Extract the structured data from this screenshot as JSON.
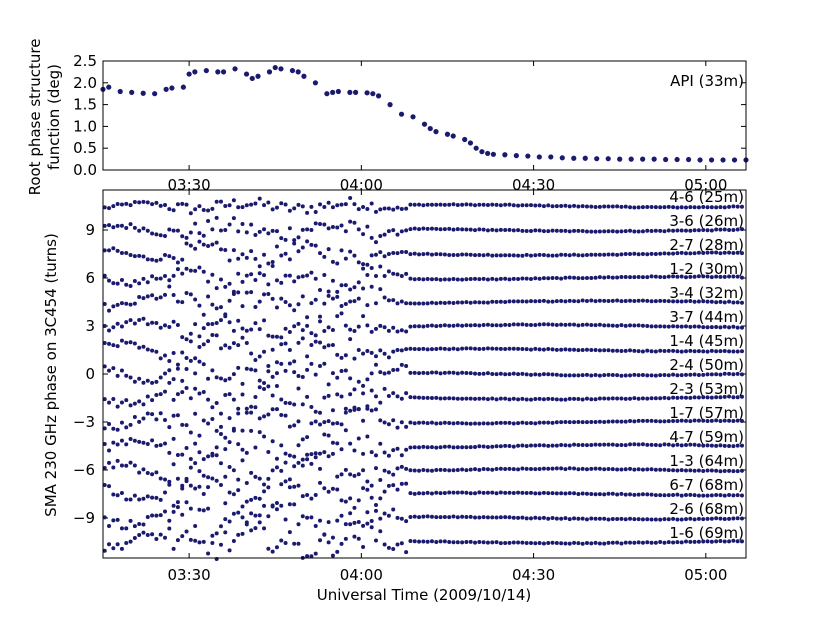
{
  "chart_data": [
    {
      "type": "scatter",
      "ylabel": "Root phase structure function (deg)",
      "ylabel_lines": [
        "Root phase structure",
        "function (deg)"
      ],
      "ylim": [
        0.0,
        2.5
      ],
      "xlim": [
        "03:15",
        "05:07"
      ],
      "yticks": [
        "0.0",
        "0.5",
        "1.0",
        "1.5",
        "2.0",
        "2.5"
      ],
      "xticks": [
        "03:30",
        "04:00",
        "04:30",
        "05:00"
      ],
      "annotation": "API (33m)",
      "marker_color": "#1a1a6e",
      "grid": false,
      "series": [
        {
          "x": [
            "03:15",
            "03:16",
            "03:18",
            "03:20",
            "03:22",
            "03:24",
            "03:26",
            "03:27",
            "03:29",
            "03:30",
            "03:31",
            "03:33",
            "03:35",
            "03:36",
            "03:38",
            "03:40",
            "03:41",
            "03:42",
            "03:44",
            "03:45",
            "03:46",
            "03:48",
            "03:49",
            "03:50",
            "03:52",
            "03:54",
            "03:55",
            "03:56",
            "03:58",
            "03:59",
            "04:01",
            "04:02",
            "04:03",
            "04:05",
            "04:07",
            "04:09",
            "04:11",
            "04:12",
            "04:13",
            "04:15",
            "04:16",
            "04:18",
            "04:19",
            "04:20",
            "04:21",
            "04:22",
            "04:23",
            "04:25",
            "04:27",
            "04:29",
            "04:31",
            "04:33",
            "04:35",
            "04:37",
            "04:39",
            "04:41",
            "04:43",
            "04:45",
            "04:47",
            "04:49",
            "04:51",
            "04:53",
            "04:55",
            "04:57",
            "04:59",
            "05:01",
            "05:03",
            "05:05",
            "05:07"
          ],
          "y": [
            1.85,
            1.9,
            1.8,
            1.78,
            1.76,
            1.75,
            1.85,
            1.88,
            1.9,
            2.2,
            2.25,
            2.28,
            2.25,
            2.25,
            2.32,
            2.2,
            2.1,
            2.15,
            2.25,
            2.35,
            2.32,
            2.28,
            2.25,
            2.15,
            2.0,
            1.75,
            1.78,
            1.8,
            1.78,
            1.78,
            1.77,
            1.75,
            1.7,
            1.5,
            1.28,
            1.22,
            1.05,
            0.95,
            0.88,
            0.82,
            0.78,
            0.7,
            0.62,
            0.5,
            0.42,
            0.38,
            0.36,
            0.35,
            0.33,
            0.32,
            0.3,
            0.3,
            0.28,
            0.27,
            0.27,
            0.26,
            0.26,
            0.25,
            0.25,
            0.25,
            0.25,
            0.24,
            0.24,
            0.24,
            0.23,
            0.23,
            0.23,
            0.23,
            0.23
          ]
        }
      ]
    },
    {
      "type": "scatter",
      "xlabel": "Universal Time (2009/10/14)",
      "ylabel": "SMA 230 GHz phase on 3C454 (turns)",
      "ylim": [
        -11.5,
        11.5
      ],
      "xlim": [
        "03:15",
        "05:07"
      ],
      "yticks": [
        "9",
        "6",
        "3",
        "0",
        "−3",
        "−6",
        "−9"
      ],
      "ytick_values": [
        9,
        6,
        3,
        0,
        -3,
        -6,
        -9
      ],
      "xticks": [
        "03:30",
        "04:00",
        "04:30",
        "05:00"
      ],
      "turbulent_until": "04:08",
      "marker_color": "#1a1a6e",
      "grid": false,
      "series": [
        {
          "name": "4-6 (25m)",
          "offset": 10.5,
          "amplitude": 0.3
        },
        {
          "name": "3-6 (26m)",
          "offset": 9.0,
          "amplitude": 0.45
        },
        {
          "name": "2-7 (28m)",
          "offset": 7.5,
          "amplitude": 0.45
        },
        {
          "name": "1-2 (30m)",
          "offset": 6.0,
          "amplitude": 0.5
        },
        {
          "name": "3-4 (32m)",
          "offset": 4.5,
          "amplitude": 0.6
        },
        {
          "name": "3-7 (44m)",
          "offset": 3.0,
          "amplitude": 0.5
        },
        {
          "name": "1-4 (45m)",
          "offset": 1.5,
          "amplitude": 0.6
        },
        {
          "name": "2-4 (50m)",
          "offset": 0.0,
          "amplitude": 0.6
        },
        {
          "name": "2-3 (53m)",
          "offset": -1.5,
          "amplitude": 0.6
        },
        {
          "name": "1-7 (57m)",
          "offset": -3.0,
          "amplitude": 0.65
        },
        {
          "name": "4-7 (59m)",
          "offset": -4.5,
          "amplitude": 0.65
        },
        {
          "name": "1-3 (64m)",
          "offset": -6.0,
          "amplitude": 0.65
        },
        {
          "name": "6-7 (68m)",
          "offset": -7.5,
          "amplitude": 0.7
        },
        {
          "name": "2-6 (68m)",
          "offset": -9.0,
          "amplitude": 0.7
        },
        {
          "name": "1-6 (69m)",
          "offset": -10.5,
          "amplitude": 0.7
        }
      ]
    }
  ]
}
